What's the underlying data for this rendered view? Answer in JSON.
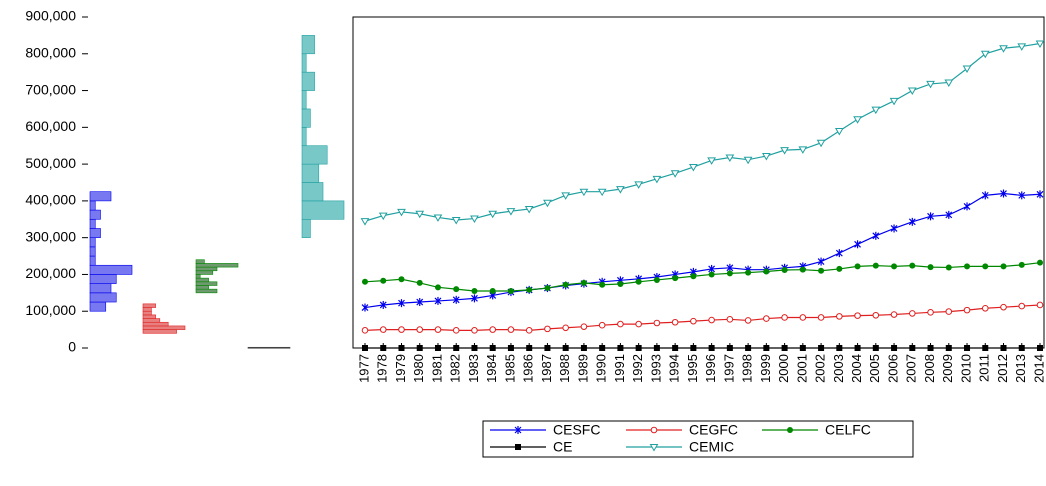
{
  "chart_data": {
    "type": "line",
    "categories": [
      "1977",
      "1978",
      "1979",
      "1980",
      "1981",
      "1982",
      "1983",
      "1984",
      "1985",
      "1986",
      "1987",
      "1988",
      "1989",
      "1990",
      "1991",
      "1992",
      "1993",
      "1994",
      "1995",
      "1996",
      "1997",
      "1998",
      "1999",
      "2000",
      "2001",
      "2002",
      "2003",
      "2004",
      "2005",
      "2006",
      "2007",
      "2008",
      "2009",
      "2010",
      "2011",
      "2012",
      "2013",
      "2014"
    ],
    "ylim": [
      0,
      900000
    ],
    "yticks": [
      0,
      {
        "value": 100000,
        "label": "100,000"
      },
      {
        "value": 200000,
        "label": "200,000"
      },
      {
        "value": 300000,
        "label": "300,000"
      },
      {
        "value": 400000,
        "label": "400,000"
      },
      {
        "value": 500000,
        "label": "500,000"
      },
      {
        "value": 600000,
        "label": "600,000"
      },
      {
        "value": 700000,
        "label": "700,000"
      },
      {
        "value": 800000,
        "label": "800,000"
      },
      {
        "value": 900000,
        "label": "900,000"
      }
    ],
    "series": [
      {
        "name": "CESFC",
        "color": "#0000ee",
        "marker": "star",
        "hist_color": "#7878f0",
        "values": [
          110000,
          117000,
          122000,
          125000,
          128000,
          131000,
          135000,
          143000,
          152000,
          158000,
          163000,
          170000,
          175000,
          180000,
          184000,
          188000,
          193000,
          200000,
          207000,
          215000,
          218000,
          213000,
          213000,
          218000,
          222000,
          235000,
          258000,
          282000,
          305000,
          325000,
          343000,
          358000,
          362000,
          385000,
          415000,
          420000,
          415000,
          418000
        ],
        "bins": [
          100000,
          125000,
          150000,
          175000,
          200000,
          225000,
          250000,
          275000,
          300000,
          325000,
          350000,
          375000,
          400000,
          425000
        ],
        "counts": [
          3,
          5,
          4,
          5,
          8,
          1,
          1,
          1,
          2,
          1,
          2,
          1,
          4
        ]
      },
      {
        "name": "CEGFC",
        "color": "#e02020",
        "marker": "circle-open",
        "hist_color": "#e88080",
        "values": [
          48000,
          50000,
          50000,
          50000,
          50000,
          48000,
          48000,
          50000,
          50000,
          48000,
          52000,
          55000,
          58000,
          62000,
          65000,
          65000,
          68000,
          70000,
          73000,
          76000,
          78000,
          75000,
          80000,
          83000,
          83000,
          83000,
          86000,
          88000,
          89000,
          91000,
          94000,
          97000,
          99000,
          103000,
          108000,
          111000,
          114000,
          117000
        ],
        "bins": [
          40000,
          50000,
          60000,
          70000,
          80000,
          90000,
          100000,
          110000,
          120000
        ],
        "counts": [
          8,
          10,
          6,
          4,
          3,
          2,
          2,
          3
        ]
      },
      {
        "name": "CELFC",
        "color": "#008800",
        "marker": "circle",
        "hist_color": "#6f9a6f",
        "values": [
          180000,
          183000,
          187000,
          177000,
          165000,
          160000,
          155000,
          155000,
          155000,
          158000,
          163000,
          172000,
          177000,
          172000,
          174000,
          180000,
          185000,
          190000,
          195000,
          200000,
          203000,
          205000,
          208000,
          212000,
          213000,
          210000,
          215000,
          222000,
          224000,
          222000,
          224000,
          220000,
          219000,
          222000,
          222000,
          222000,
          226000,
          232000
        ],
        "bins": [
          150000,
          160000,
          170000,
          180000,
          190000,
          200000,
          210000,
          220000,
          230000,
          240000
        ],
        "counts": [
          5,
          3,
          5,
          3,
          1,
          4,
          5,
          10,
          2
        ]
      },
      {
        "name": "CE",
        "color": "#000000",
        "marker": "square",
        "hist_color": "#444444",
        "values": [
          0,
          0,
          0,
          0,
          0,
          0,
          0,
          0,
          0,
          0,
          0,
          0,
          0,
          0,
          0,
          0,
          0,
          0,
          0,
          0,
          0,
          0,
          0,
          0,
          0,
          0,
          0,
          0,
          0,
          0,
          0,
          0,
          0,
          0,
          0,
          0,
          0,
          0
        ],
        "bins": [
          0,
          2000
        ],
        "counts": [
          38
        ]
      },
      {
        "name": "CEMIC",
        "color": "#20a0a0",
        "marker": "triangle-down",
        "hist_color": "#78c8c8",
        "values": [
          345000,
          360000,
          370000,
          365000,
          355000,
          348000,
          352000,
          365000,
          372000,
          378000,
          395000,
          415000,
          425000,
          425000,
          432000,
          445000,
          460000,
          475000,
          492000,
          510000,
          518000,
          512000,
          522000,
          538000,
          540000,
          558000,
          590000,
          622000,
          648000,
          672000,
          700000,
          718000,
          722000,
          760000,
          800000,
          815000,
          820000,
          828000
        ],
        "bins": [
          300000,
          350000,
          400000,
          450000,
          500000,
          550000,
          600000,
          650000,
          700000,
          750000,
          800000,
          850000
        ],
        "counts": [
          2,
          10,
          5,
          4,
          6,
          1,
          2,
          1,
          3,
          1,
          3
        ]
      }
    ]
  }
}
